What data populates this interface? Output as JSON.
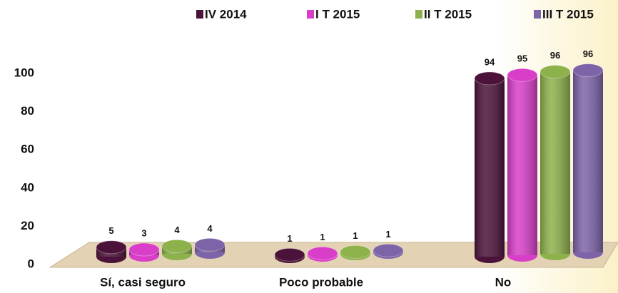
{
  "chart_data": {
    "type": "bar",
    "categories": [
      "Sí, casi seguro",
      "Poco probable",
      "No"
    ],
    "series": [
      {
        "name": "IV 2014",
        "color": "#4b1339",
        "values": [
          5,
          1,
          94
        ]
      },
      {
        "name": "I T 2015",
        "color": "#d93ec9",
        "values": [
          3,
          1,
          95
        ]
      },
      {
        "name": "II T 2015",
        "color": "#8db14b",
        "values": [
          4,
          1,
          96
        ]
      },
      {
        "name": "III T 2015",
        "color": "#7d64a8",
        "values": [
          4,
          1,
          96
        ]
      }
    ],
    "ylim": [
      0,
      100
    ],
    "yticks": [
      0,
      20,
      40,
      60,
      80,
      100
    ]
  }
}
